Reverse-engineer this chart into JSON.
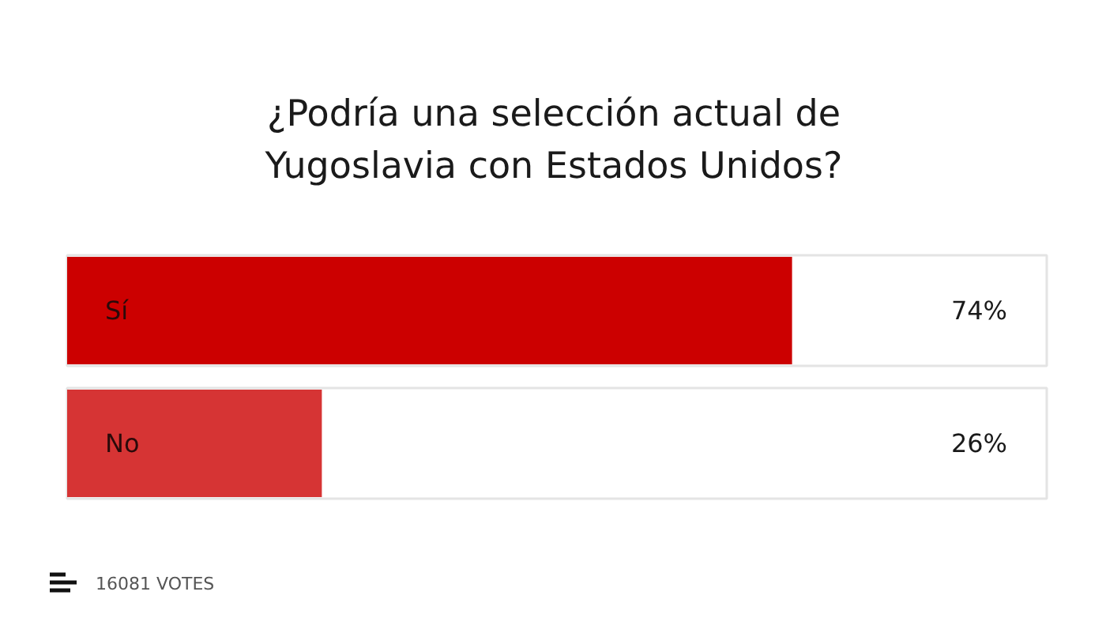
{
  "chart_data": {
    "type": "bar",
    "orientation": "horizontal",
    "title": "¿Podría una selección actual de\nYugoslavia con Estados Unidos?",
    "categories": [
      "Sí",
      "No"
    ],
    "values": [
      74,
      26
    ],
    "colors": [
      "#cc0000",
      "#d63434"
    ],
    "value_labels": [
      "74%",
      "26%"
    ],
    "xlim": [
      0,
      100
    ],
    "annotations": [
      "16081 VOTES"
    ]
  }
}
